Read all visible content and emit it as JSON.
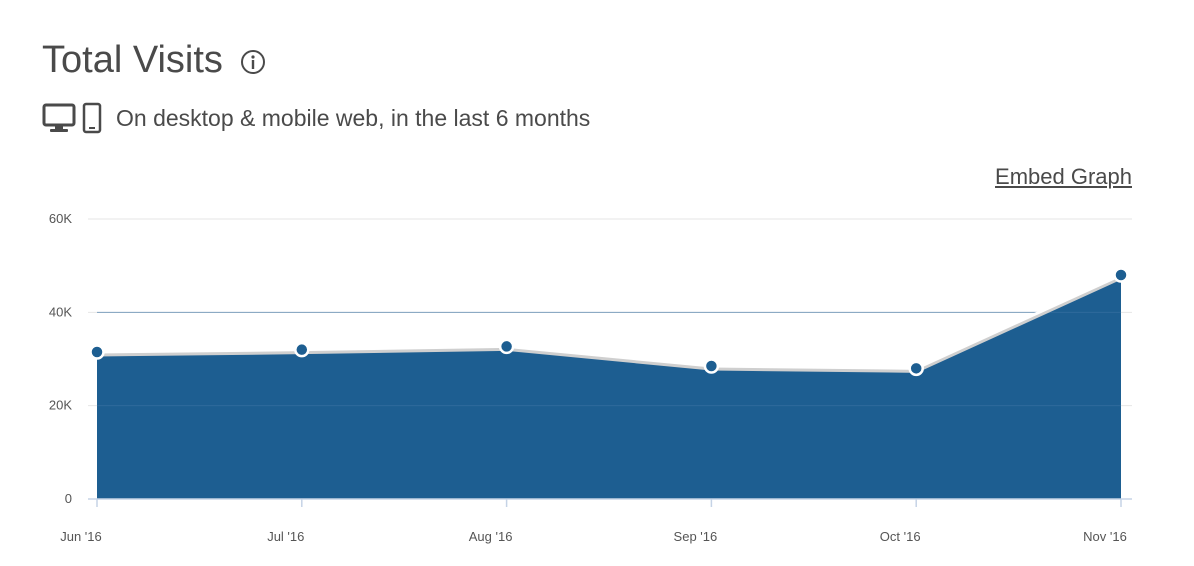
{
  "header": {
    "title": "Total Visits",
    "info_icon": "info-circle-icon",
    "subtitle": "On desktop & mobile web, in the last 6 months",
    "device_icons": [
      "desktop-icon",
      "mobile-icon"
    ],
    "embed_label": "Embed Graph"
  },
  "colors": {
    "area_fill": "#1d5e91",
    "line": "#ffffff",
    "point": "#1d5e91",
    "grid": "#e6e6e6",
    "axis": "#c5d3e6"
  },
  "chart_data": {
    "type": "area",
    "title": "",
    "xlabel": "",
    "ylabel": "",
    "categories": [
      "Jun '16",
      "Jul '16",
      "Aug '16",
      "Sep '16",
      "Oct '16",
      "Nov '16"
    ],
    "series": [
      {
        "values": [
          31500,
          32000,
          32700,
          28500,
          28000,
          48000
        ]
      }
    ],
    "ylim": [
      0,
      60000
    ],
    "y_ticks": [
      0,
      20000,
      40000,
      60000
    ],
    "y_tick_labels": [
      "0",
      "20K",
      "40K",
      "60K"
    ],
    "grid": true,
    "legend": "none"
  }
}
